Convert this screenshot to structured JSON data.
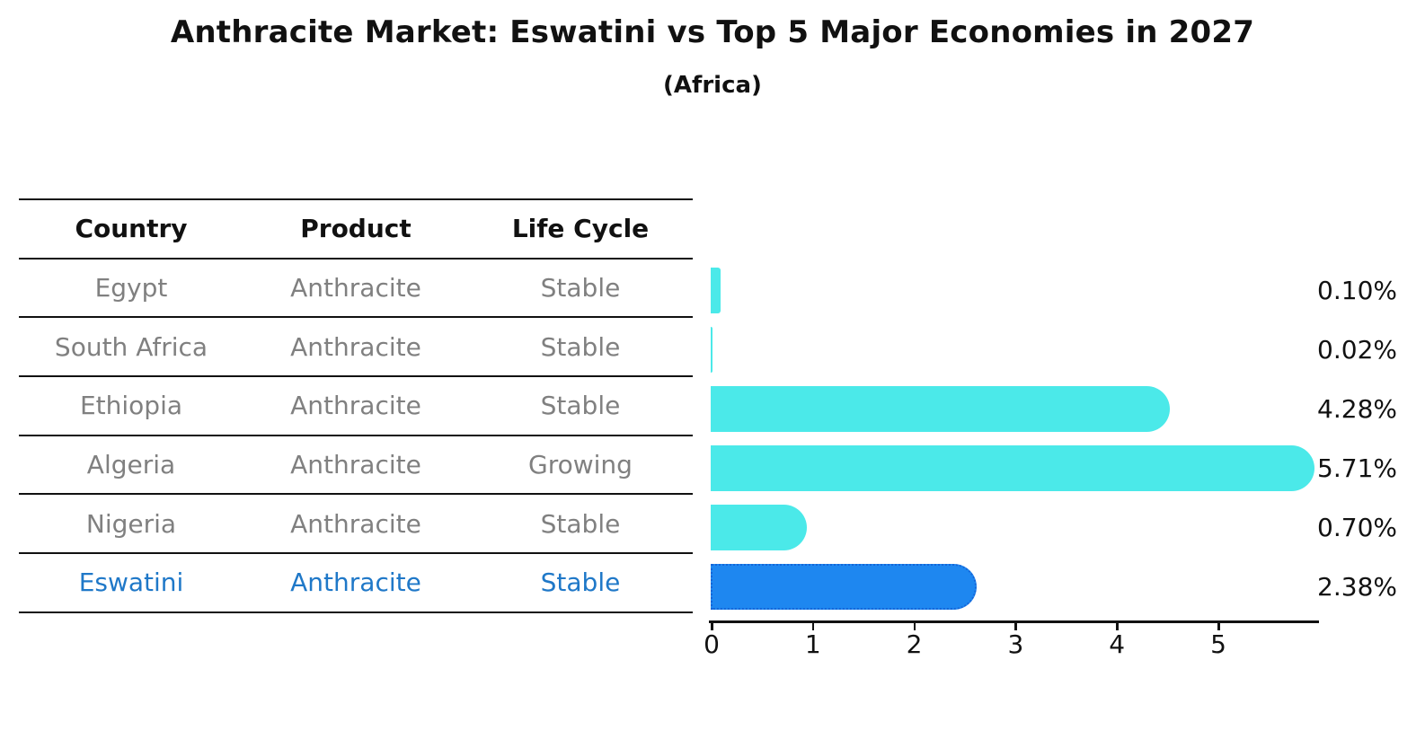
{
  "header": {
    "title": "Anthracite Market: Eswatini vs Top 5 Major Economies in 2027",
    "subtitle": "(Africa)"
  },
  "table": {
    "columns": [
      "Country",
      "Product",
      "Life Cycle"
    ],
    "rows": [
      {
        "country": "Egypt",
        "product": "Anthracite",
        "life_cycle": "Stable",
        "highlighted": false
      },
      {
        "country": "South Africa",
        "product": "Anthracite",
        "life_cycle": "Stable",
        "highlighted": false
      },
      {
        "country": "Ethiopia",
        "product": "Anthracite",
        "life_cycle": "Stable",
        "highlighted": false
      },
      {
        "country": "Algeria",
        "product": "Anthracite",
        "life_cycle": "Growing",
        "highlighted": false
      },
      {
        "country": "Nigeria",
        "product": "Anthracite",
        "life_cycle": "Stable",
        "highlighted": false
      },
      {
        "country": "Eswatini",
        "product": "Anthracite",
        "life_cycle": "Stable",
        "highlighted": true
      }
    ]
  },
  "chart_data": {
    "type": "bar",
    "orientation": "horizontal",
    "title": "Anthracite Market: Eswatini vs Top 5 Major Economies in 2027 (Africa)",
    "categories": [
      "Egypt",
      "South Africa",
      "Ethiopia",
      "Algeria",
      "Nigeria",
      "Eswatini"
    ],
    "values": [
      0.1,
      0.02,
      4.28,
      5.71,
      0.7,
      2.38
    ],
    "value_labels": [
      "0.10%",
      "0.02%",
      "4.28%",
      "5.71%",
      "0.70%",
      "2.38%"
    ],
    "x_ticks": [
      "0",
      "1",
      "2",
      "3",
      "4",
      "5"
    ],
    "xlim": [
      0,
      6
    ],
    "grid": false,
    "legend": false,
    "highlight_index": 5,
    "colors": {
      "bar_default": "#4BE9E9",
      "bar_highlight": "#1E87F0",
      "bar_highlight_border": "#1565D8",
      "highlight_text": "#1F78C8",
      "table_text": "#808080",
      "axis_text": "#111111"
    }
  }
}
